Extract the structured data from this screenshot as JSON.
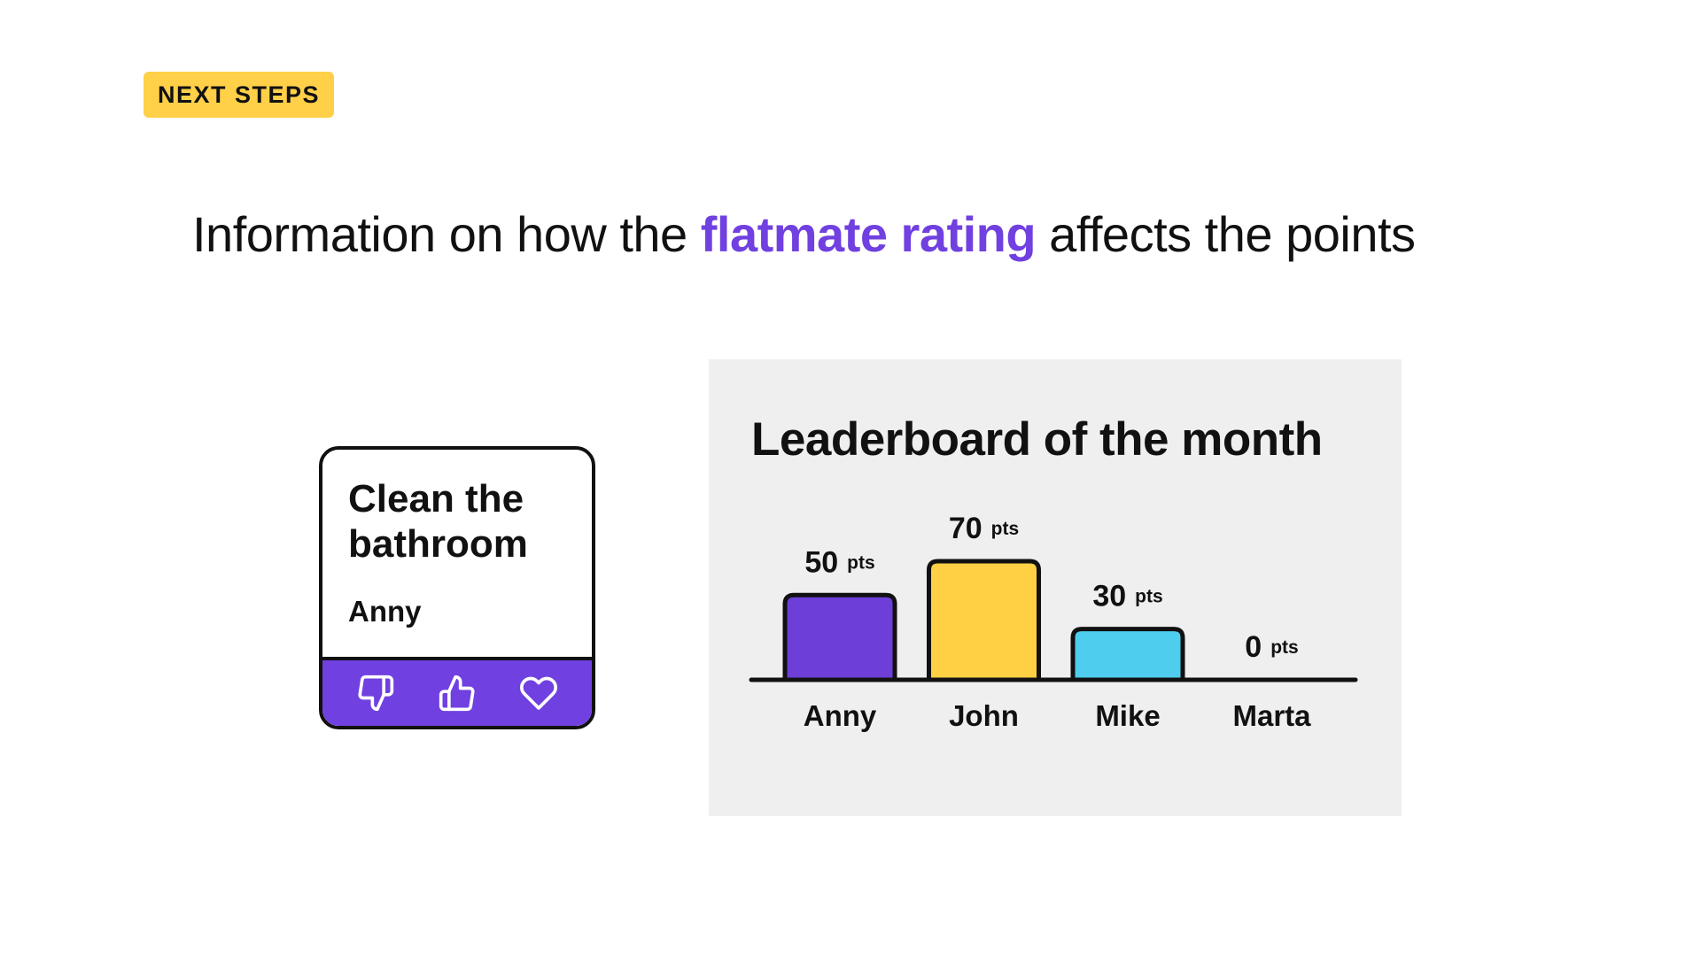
{
  "badge": {
    "label": "NEXT STEPS"
  },
  "headline": {
    "before": "Information on how the ",
    "accent": "flatmate rating",
    "after": " affects the points"
  },
  "task_card": {
    "title": "Clean the bathroom",
    "assignee": "Anny",
    "actions": [
      "thumbs-down-icon",
      "thumbs-up-icon",
      "heart-icon"
    ]
  },
  "leaderboard": {
    "title": "Leaderboard of the month"
  },
  "colors": {
    "accent": "#7040e0",
    "badge": "#ffd048",
    "panel_bg": "#efefef"
  },
  "chart_data": {
    "type": "bar",
    "title": "Leaderboard of the month",
    "categories": [
      "Anny",
      "John",
      "Mike",
      "Marta"
    ],
    "values": [
      50,
      70,
      30,
      0
    ],
    "unit": "pts",
    "value_labels": [
      "50",
      "70",
      "30",
      "0"
    ],
    "colors": [
      "#6d3fd8",
      "#ffcf44",
      "#4fcdee",
      "#cccccc"
    ],
    "ylim": [
      0,
      70
    ],
    "grid": false,
    "legend": "none"
  }
}
